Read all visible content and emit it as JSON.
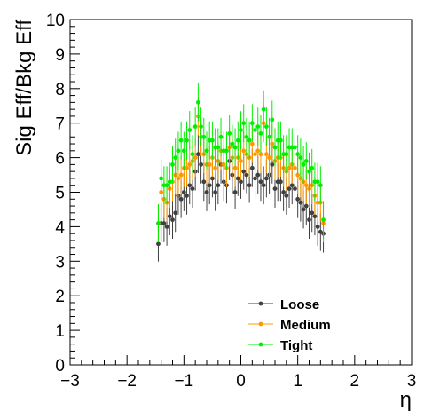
{
  "chart_data": {
    "type": "scatter",
    "xlabel": "η",
    "ylabel": "Sig Eff/Bkg Eff",
    "xlim": [
      -3,
      3
    ],
    "ylim": [
      0,
      10
    ],
    "x_ticks": [
      "−3",
      "−2",
      "−1",
      "0",
      "1",
      "2",
      "3"
    ],
    "y_ticks": [
      "0",
      "1",
      "2",
      "3",
      "4",
      "5",
      "6",
      "7",
      "8",
      "9",
      "10"
    ],
    "legend_position": "bottom-right",
    "error_bars": true,
    "x": [
      -1.45,
      -1.4,
      -1.35,
      -1.3,
      -1.25,
      -1.2,
      -1.15,
      -1.1,
      -1.05,
      -1.0,
      -0.95,
      -0.9,
      -0.85,
      -0.8,
      -0.75,
      -0.7,
      -0.65,
      -0.6,
      -0.55,
      -0.5,
      -0.45,
      -0.4,
      -0.35,
      -0.3,
      -0.25,
      -0.2,
      -0.15,
      -0.1,
      -0.05,
      0.0,
      0.05,
      0.1,
      0.15,
      0.2,
      0.25,
      0.3,
      0.35,
      0.4,
      0.45,
      0.5,
      0.55,
      0.6,
      0.65,
      0.7,
      0.75,
      0.8,
      0.85,
      0.9,
      0.95,
      1.0,
      1.05,
      1.1,
      1.15,
      1.2,
      1.25,
      1.3,
      1.35,
      1.4,
      1.45
    ],
    "series": [
      {
        "name": "Loose",
        "color": "#404040",
        "values": [
          3.5,
          4.1,
          4.1,
          4.0,
          4.3,
          4.2,
          4.4,
          4.9,
          4.8,
          5.0,
          4.9,
          5.2,
          5.1,
          5.6,
          6.1,
          5.8,
          5.3,
          5.0,
          5.2,
          5.4,
          5.0,
          5.2,
          5.8,
          5.3,
          5.2,
          5.9,
          5.5,
          5.0,
          5.4,
          5.3,
          5.6,
          5.5,
          5.2,
          5.7,
          5.4,
          5.5,
          5.3,
          5.2,
          5.4,
          5.5,
          5.8,
          5.1,
          5.3,
          5.3,
          5.0,
          4.9,
          5.1,
          5.2,
          5.1,
          4.8,
          4.7,
          4.5,
          4.6,
          4.2,
          4.4,
          4.3,
          4.0,
          3.85,
          3.8
        ]
      },
      {
        "name": "Medium",
        "color": "#ff9900",
        "values": [
          4.1,
          5.0,
          4.8,
          4.7,
          5.1,
          5.3,
          5.5,
          5.4,
          5.5,
          5.7,
          5.7,
          5.8,
          5.9,
          6.0,
          7.2,
          6.6,
          6.1,
          5.8,
          5.8,
          6.0,
          5.7,
          5.9,
          6.2,
          5.8,
          5.7,
          6.3,
          6.0,
          5.7,
          6.0,
          5.9,
          6.2,
          6.1,
          6.0,
          6.4,
          6.1,
          6.2,
          6.1,
          7.0,
          6.1,
          6.0,
          6.4,
          5.9,
          6.0,
          6.0,
          5.7,
          5.6,
          5.7,
          5.8,
          5.7,
          5.5,
          5.4,
          5.3,
          5.2,
          5.1,
          5.2,
          4.9,
          4.7,
          4.7,
          4.1
        ]
      },
      {
        "name": "Tight",
        "color": "#00ee00",
        "values": [
          4.1,
          5.4,
          5.2,
          5.2,
          5.3,
          5.8,
          6.0,
          6.2,
          6.5,
          6.2,
          6.5,
          6.8,
          6.1,
          6.9,
          7.6,
          6.9,
          6.6,
          6.2,
          6.5,
          6.5,
          6.3,
          6.3,
          6.6,
          6.2,
          6.2,
          6.7,
          6.4,
          6.3,
          6.5,
          6.8,
          7.0,
          6.6,
          6.5,
          7.0,
          6.8,
          6.9,
          6.7,
          7.4,
          6.9,
          6.6,
          7.1,
          6.3,
          6.5,
          6.5,
          6.1,
          6.1,
          6.3,
          6.3,
          6.3,
          6.1,
          6.0,
          5.8,
          5.9,
          5.6,
          5.7,
          5.3,
          5.3,
          5.2,
          4.2
        ]
      }
    ]
  }
}
